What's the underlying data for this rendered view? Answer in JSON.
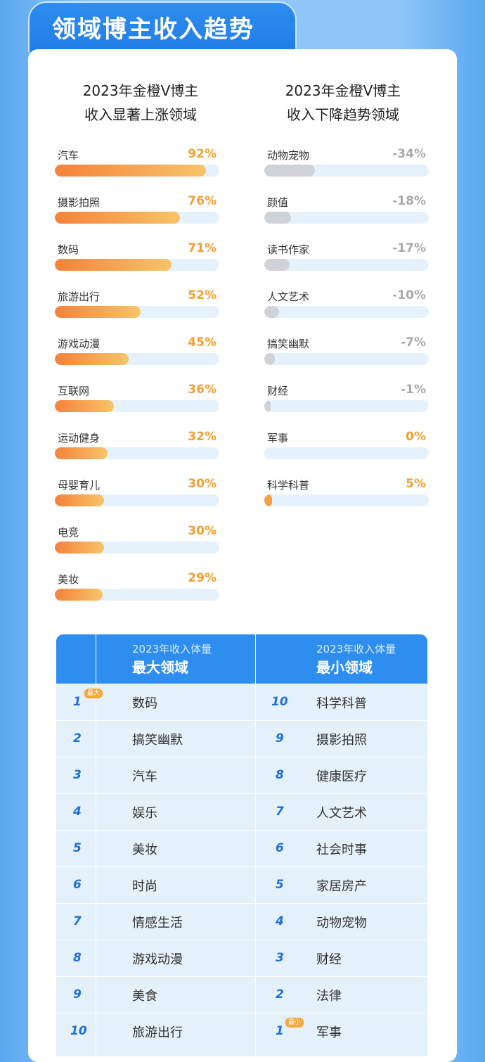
{
  "header": {
    "title": "领域博主收入趋势"
  },
  "left": {
    "heading": [
      "2023年金橙V博主",
      "收入显著上涨领域"
    ],
    "items": [
      {
        "label": "汽车",
        "value": "92%",
        "pct": 92
      },
      {
        "label": "摄影拍照",
        "value": "76%",
        "pct": 76
      },
      {
        "label": "数码",
        "value": "71%",
        "pct": 71
      },
      {
        "label": "旅游出行",
        "value": "52%",
        "pct": 52
      },
      {
        "label": "游戏动漫",
        "value": "45%",
        "pct": 45
      },
      {
        "label": "互联网",
        "value": "36%",
        "pct": 36
      },
      {
        "label": "运动健身",
        "value": "32%",
        "pct": 32
      },
      {
        "label": "母婴育儿",
        "value": "30%",
        "pct": 30
      },
      {
        "label": "电竞",
        "value": "30%",
        "pct": 30
      },
      {
        "label": "美妆",
        "value": "29%",
        "pct": 29
      }
    ]
  },
  "right": {
    "heading": [
      "2023年金橙V博主",
      "收入下降趋势领域"
    ],
    "items": [
      {
        "label": "动物宠物",
        "value": "-34%",
        "pct": -34
      },
      {
        "label": "颜值",
        "value": "-18%",
        "pct": -18
      },
      {
        "label": "读书作家",
        "value": "-17%",
        "pct": -17
      },
      {
        "label": "人文艺术",
        "value": "-10%",
        "pct": -10
      },
      {
        "label": "搞笑幽默",
        "value": "-7%",
        "pct": -7
      },
      {
        "label": "财经",
        "value": "-1%",
        "pct": -1
      },
      {
        "label": "军事",
        "value": "0%",
        "pct": 0
      },
      {
        "label": "科学科普",
        "value": "5%",
        "pct": 5
      }
    ]
  },
  "table": {
    "col1": {
      "sub": "2023年收入体量",
      "main": "最大领域"
    },
    "col2": {
      "sub": "2023年收入体量",
      "main": "最小领域"
    },
    "badge_max": "最大",
    "badge_min": "最小",
    "rows": [
      {
        "rank_l": "1",
        "left": "数码",
        "rank_r": "10",
        "right": "科学科普"
      },
      {
        "rank_l": "2",
        "left": "搞笑幽默",
        "rank_r": "9",
        "right": "摄影拍照"
      },
      {
        "rank_l": "3",
        "left": "汽车",
        "rank_r": "8",
        "right": "健康医疗"
      },
      {
        "rank_l": "4",
        "left": "娱乐",
        "rank_r": "7",
        "right": "人文艺术"
      },
      {
        "rank_l": "5",
        "left": "美妆",
        "rank_r": "6",
        "right": "社会时事"
      },
      {
        "rank_l": "6",
        "left": "时尚",
        "rank_r": "5",
        "right": "家居房产"
      },
      {
        "rank_l": "7",
        "left": "情感生活",
        "rank_r": "4",
        "right": "动物宠物"
      },
      {
        "rank_l": "8",
        "left": "游戏动漫",
        "rank_r": "3",
        "right": "财经"
      },
      {
        "rank_l": "9",
        "left": "美食",
        "rank_r": "2",
        "right": "法律"
      },
      {
        "rank_l": "10",
        "left": "旅游出行",
        "rank_r": "1",
        "right": "军事"
      }
    ]
  },
  "chart_data": [
    {
      "type": "bar",
      "title": "2023年金橙V博主 收入显著上涨领域",
      "categories": [
        "汽车",
        "摄影拍照",
        "数码",
        "旅游出行",
        "游戏动漫",
        "互联网",
        "运动健身",
        "母婴育儿",
        "电竞",
        "美妆"
      ],
      "values": [
        92,
        76,
        71,
        52,
        45,
        36,
        32,
        30,
        30,
        29
      ]
    },
    {
      "type": "bar",
      "title": "2023年金橙V博主 收入下降趋势领域",
      "categories": [
        "动物宠物",
        "颜值",
        "读书作家",
        "人文艺术",
        "搞笑幽默",
        "财经",
        "军事",
        "科学科普"
      ],
      "values": [
        -34,
        -18,
        -17,
        -10,
        -7,
        -1,
        0,
        5
      ]
    }
  ],
  "colors": {
    "accent": "#2e8ef0",
    "rise": "#f0a030",
    "fall": "#a9a9a9"
  }
}
